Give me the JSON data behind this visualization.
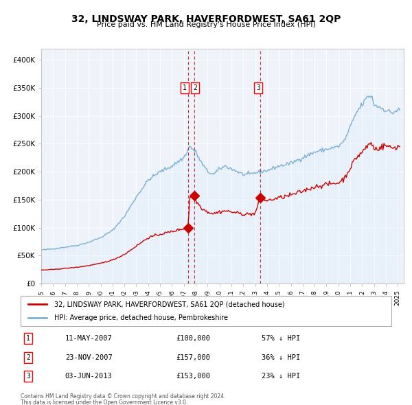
{
  "title": "32, LINDSWAY PARK, HAVERFORDWEST, SA61 2QP",
  "subtitle": "Price paid vs. HM Land Registry's House Price Index (HPI)",
  "legend_property": "32, LINDSWAY PARK, HAVERFORDWEST, SA61 2QP (detached house)",
  "legend_hpi": "HPI: Average price, detached house, Pembrokeshire",
  "footer1": "Contains HM Land Registry data © Crown copyright and database right 2024.",
  "footer2": "This data is licensed under the Open Government Licence v3.0.",
  "transactions": [
    {
      "num": 1,
      "date": "11-MAY-2007",
      "price": 100000,
      "pct": "57%",
      "dir": "↓"
    },
    {
      "num": 2,
      "date": "23-NOV-2007",
      "price": 157000,
      "pct": "36%",
      "dir": "↓"
    },
    {
      "num": 3,
      "date": "03-JUN-2013",
      "price": 153000,
      "pct": "23%",
      "dir": "↓"
    }
  ],
  "transaction_dates_decimal": [
    2007.36,
    2007.9,
    2013.42
  ],
  "property_color": "#cc0000",
  "hpi_color": "#7ab0d4",
  "hpi_fill_color": "#ddeeff",
  "vline_color": "#cc0000",
  "background_color": "#e8f0f8",
  "plot_bg": "#eef3f9",
  "ylim": [
    0,
    420000
  ],
  "xlim_start": 1995.0,
  "xlim_end": 2025.5,
  "yticks": [
    0,
    50000,
    100000,
    150000,
    200000,
    250000,
    300000,
    350000,
    400000
  ]
}
